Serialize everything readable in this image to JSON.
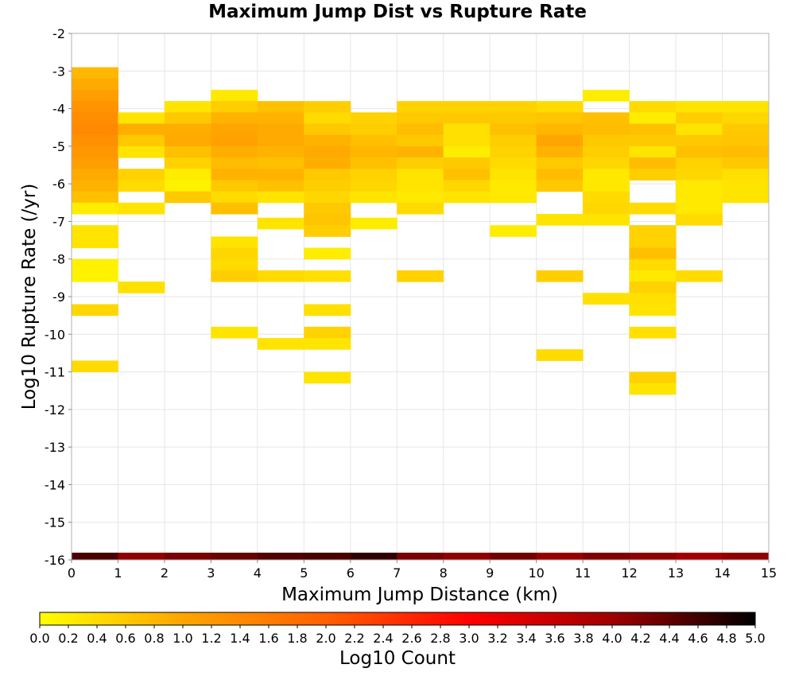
{
  "chart_data": {
    "type": "heatmap",
    "title": "Maximum Jump Dist vs Rupture Rate",
    "xlabel": "Maximum Jump Distance (km)",
    "ylabel": "Log10 Rupture Rate (/yr)",
    "xlim": [
      0,
      15
    ],
    "ylim": [
      -16,
      -2
    ],
    "x_ticks": [
      "0",
      "1",
      "2",
      "3",
      "4",
      "5",
      "6",
      "7",
      "8",
      "9",
      "10",
      "11",
      "12",
      "13",
      "14",
      "15"
    ],
    "y_ticks": [
      "-2",
      "-3",
      "-4",
      "-5",
      "-6",
      "-7",
      "-8",
      "-9",
      "-10",
      "-11",
      "-12",
      "-13",
      "-14",
      "-15",
      "-16"
    ],
    "colorbar": {
      "label": "Log10 Count",
      "range": [
        0,
        5
      ],
      "ticks": [
        "0.0",
        "0.2",
        "0.4",
        "0.6",
        "0.8",
        "1.0",
        "1.2",
        "1.4",
        "1.6",
        "1.8",
        "2.0",
        "2.2",
        "2.4",
        "2.6",
        "2.8",
        "3.0",
        "3.2",
        "3.4",
        "3.6",
        "3.8",
        "4.0",
        "4.2",
        "4.4",
        "4.6",
        "4.8",
        "5.0"
      ],
      "colors": [
        "#ffff00",
        "#ffa500",
        "#ff6000",
        "#ff0000",
        "#a00000",
        "#000000"
      ]
    },
    "grid": true,
    "bin_width_x": 1,
    "bin_height_y": 0.3,
    "cells": [
      {
        "x": 0.5,
        "y": -3.05,
        "v": 0.8
      },
      {
        "x": 0.5,
        "y": -3.35,
        "v": 0.95
      },
      {
        "x": 0.5,
        "y": -3.65,
        "v": 1.1
      },
      {
        "x": 0.5,
        "y": -3.95,
        "v": 1.25
      },
      {
        "x": 0.5,
        "y": -4.25,
        "v": 1.35
      },
      {
        "x": 0.5,
        "y": -4.55,
        "v": 1.4
      },
      {
        "x": 0.5,
        "y": -4.85,
        "v": 1.3
      },
      {
        "x": 0.5,
        "y": -5.15,
        "v": 1.2
      },
      {
        "x": 0.5,
        "y": -5.45,
        "v": 1.1
      },
      {
        "x": 0.5,
        "y": -5.75,
        "v": 0.95
      },
      {
        "x": 0.5,
        "y": -6.05,
        "v": 0.85
      },
      {
        "x": 0.5,
        "y": -6.35,
        "v": 0.7
      },
      {
        "x": 0.5,
        "y": -6.65,
        "v": 0.2
      },
      {
        "x": 0.5,
        "y": -7.25,
        "v": 0.3
      },
      {
        "x": 0.5,
        "y": -7.55,
        "v": 0.3
      },
      {
        "x": 0.5,
        "y": -8.15,
        "v": 0.15
      },
      {
        "x": 0.5,
        "y": -8.45,
        "v": 0.15
      },
      {
        "x": 0.5,
        "y": -9.35,
        "v": 0.45
      },
      {
        "x": 0.5,
        "y": -10.85,
        "v": 0.4
      },
      {
        "x": 1.5,
        "y": -4.25,
        "v": 0.3
      },
      {
        "x": 1.5,
        "y": -4.55,
        "v": 0.9
      },
      {
        "x": 1.5,
        "y": -4.85,
        "v": 0.6
      },
      {
        "x": 1.5,
        "y": -5.15,
        "v": 0.3
      },
      {
        "x": 1.5,
        "y": -5.75,
        "v": 0.5
      },
      {
        "x": 1.5,
        "y": -6.05,
        "v": 0.4
      },
      {
        "x": 1.5,
        "y": -6.65,
        "v": 0.3
      },
      {
        "x": 1.5,
        "y": -8.75,
        "v": 0.35
      },
      {
        "x": 2.5,
        "y": -3.95,
        "v": 0.3
      },
      {
        "x": 2.5,
        "y": -4.25,
        "v": 0.6
      },
      {
        "x": 2.5,
        "y": -4.55,
        "v": 0.9
      },
      {
        "x": 2.5,
        "y": -4.85,
        "v": 0.95
      },
      {
        "x": 2.5,
        "y": -5.15,
        "v": 0.7
      },
      {
        "x": 2.5,
        "y": -5.45,
        "v": 0.5
      },
      {
        "x": 2.5,
        "y": -5.75,
        "v": 0.2
      },
      {
        "x": 2.5,
        "y": -6.05,
        "v": 0.15
      },
      {
        "x": 2.5,
        "y": -6.35,
        "v": 0.6
      },
      {
        "x": 3.5,
        "y": -3.65,
        "v": 0.25
      },
      {
        "x": 3.5,
        "y": -3.95,
        "v": 0.55
      },
      {
        "x": 3.5,
        "y": -4.25,
        "v": 0.85
      },
      {
        "x": 3.5,
        "y": -4.55,
        "v": 1.0
      },
      {
        "x": 3.5,
        "y": -4.85,
        "v": 1.05
      },
      {
        "x": 3.5,
        "y": -5.15,
        "v": 0.9
      },
      {
        "x": 3.5,
        "y": -5.45,
        "v": 0.75
      },
      {
        "x": 3.5,
        "y": -5.75,
        "v": 0.85
      },
      {
        "x": 3.5,
        "y": -6.05,
        "v": 0.6
      },
      {
        "x": 3.5,
        "y": -6.35,
        "v": 0.4
      },
      {
        "x": 3.5,
        "y": -6.65,
        "v": 0.7
      },
      {
        "x": 3.5,
        "y": -7.55,
        "v": 0.3
      },
      {
        "x": 3.5,
        "y": -7.85,
        "v": 0.45
      },
      {
        "x": 3.5,
        "y": -8.15,
        "v": 0.4
      },
      {
        "x": 3.5,
        "y": -8.45,
        "v": 0.55
      },
      {
        "x": 3.5,
        "y": -9.95,
        "v": 0.3
      },
      {
        "x": 4.5,
        "y": -3.95,
        "v": 0.7
      },
      {
        "x": 4.5,
        "y": -4.25,
        "v": 0.85
      },
      {
        "x": 4.5,
        "y": -4.55,
        "v": 0.95
      },
      {
        "x": 4.5,
        "y": -4.85,
        "v": 0.95
      },
      {
        "x": 4.5,
        "y": -5.15,
        "v": 0.85
      },
      {
        "x": 4.5,
        "y": -5.45,
        "v": 0.7
      },
      {
        "x": 4.5,
        "y": -5.75,
        "v": 0.85
      },
      {
        "x": 4.5,
        "y": -6.05,
        "v": 0.7
      },
      {
        "x": 4.5,
        "y": -6.35,
        "v": 0.3
      },
      {
        "x": 4.5,
        "y": -7.05,
        "v": 0.3
      },
      {
        "x": 4.5,
        "y": -8.45,
        "v": 0.4
      },
      {
        "x": 4.5,
        "y": -10.25,
        "v": 0.3
      },
      {
        "x": 5.5,
        "y": -3.95,
        "v": 0.55
      },
      {
        "x": 5.5,
        "y": -4.25,
        "v": 0.4
      },
      {
        "x": 5.5,
        "y": -4.55,
        "v": 0.6
      },
      {
        "x": 5.5,
        "y": -4.85,
        "v": 0.85
      },
      {
        "x": 5.5,
        "y": -5.15,
        "v": 0.95
      },
      {
        "x": 5.5,
        "y": -5.45,
        "v": 0.9
      },
      {
        "x": 5.5,
        "y": -5.75,
        "v": 0.6
      },
      {
        "x": 5.5,
        "y": -6.05,
        "v": 0.55
      },
      {
        "x": 5.5,
        "y": -6.35,
        "v": 0.45
      },
      {
        "x": 5.5,
        "y": -6.65,
        "v": 0.6
      },
      {
        "x": 5.5,
        "y": -6.95,
        "v": 0.65
      },
      {
        "x": 5.5,
        "y": -7.25,
        "v": 0.55
      },
      {
        "x": 5.5,
        "y": -7.85,
        "v": 0.2
      },
      {
        "x": 5.5,
        "y": -8.45,
        "v": 0.35
      },
      {
        "x": 5.5,
        "y": -9.35,
        "v": 0.35
      },
      {
        "x": 5.5,
        "y": -9.95,
        "v": 0.5
      },
      {
        "x": 5.5,
        "y": -10.25,
        "v": 0.3
      },
      {
        "x": 5.5,
        "y": -11.15,
        "v": 0.3
      },
      {
        "x": 6.5,
        "y": -4.25,
        "v": 0.5
      },
      {
        "x": 6.5,
        "y": -4.55,
        "v": 0.55
      },
      {
        "x": 6.5,
        "y": -4.85,
        "v": 0.7
      },
      {
        "x": 6.5,
        "y": -5.15,
        "v": 0.8
      },
      {
        "x": 6.5,
        "y": -5.45,
        "v": 0.7
      },
      {
        "x": 6.5,
        "y": -5.75,
        "v": 0.5
      },
      {
        "x": 6.5,
        "y": -6.05,
        "v": 0.45
      },
      {
        "x": 6.5,
        "y": -6.35,
        "v": 0.3
      },
      {
        "x": 6.5,
        "y": -7.05,
        "v": 0.2
      },
      {
        "x": 7.5,
        "y": -3.95,
        "v": 0.5
      },
      {
        "x": 7.5,
        "y": -4.25,
        "v": 0.6
      },
      {
        "x": 7.5,
        "y": -4.55,
        "v": 0.75
      },
      {
        "x": 7.5,
        "y": -4.85,
        "v": 0.6
      },
      {
        "x": 7.5,
        "y": -5.15,
        "v": 0.85
      },
      {
        "x": 7.5,
        "y": -5.45,
        "v": 0.55
      },
      {
        "x": 7.5,
        "y": -5.75,
        "v": 0.3
      },
      {
        "x": 7.5,
        "y": -6.05,
        "v": 0.3
      },
      {
        "x": 7.5,
        "y": -6.35,
        "v": 0.25
      },
      {
        "x": 7.5,
        "y": -6.65,
        "v": 0.4
      },
      {
        "x": 7.5,
        "y": -8.45,
        "v": 0.5
      },
      {
        "x": 8.5,
        "y": -3.95,
        "v": 0.5
      },
      {
        "x": 8.5,
        "y": -4.25,
        "v": 0.6
      },
      {
        "x": 8.5,
        "y": -4.55,
        "v": 0.35
      },
      {
        "x": 8.5,
        "y": -4.85,
        "v": 0.35
      },
      {
        "x": 8.5,
        "y": -5.15,
        "v": 0.2
      },
      {
        "x": 8.5,
        "y": -5.45,
        "v": 0.6
      },
      {
        "x": 8.5,
        "y": -5.75,
        "v": 0.7
      },
      {
        "x": 8.5,
        "y": -6.05,
        "v": 0.45
      },
      {
        "x": 8.5,
        "y": -6.35,
        "v": 0.3
      },
      {
        "x": 9.5,
        "y": -3.95,
        "v": 0.5
      },
      {
        "x": 9.5,
        "y": -4.25,
        "v": 0.6
      },
      {
        "x": 9.5,
        "y": -4.55,
        "v": 0.7
      },
      {
        "x": 9.5,
        "y": -4.85,
        "v": 0.55
      },
      {
        "x": 9.5,
        "y": -5.15,
        "v": 0.5
      },
      {
        "x": 9.5,
        "y": -5.45,
        "v": 0.4
      },
      {
        "x": 9.5,
        "y": -5.75,
        "v": 0.3
      },
      {
        "x": 9.5,
        "y": -6.05,
        "v": 0.25
      },
      {
        "x": 9.5,
        "y": -6.35,
        "v": 0.25
      },
      {
        "x": 9.5,
        "y": -7.25,
        "v": 0.2
      },
      {
        "x": 10.5,
        "y": -3.95,
        "v": 0.4
      },
      {
        "x": 10.5,
        "y": -4.25,
        "v": 0.65
      },
      {
        "x": 10.5,
        "y": -4.55,
        "v": 0.8
      },
      {
        "x": 10.5,
        "y": -4.85,
        "v": 1.0
      },
      {
        "x": 10.5,
        "y": -5.15,
        "v": 0.85
      },
      {
        "x": 10.5,
        "y": -5.45,
        "v": 0.6
      },
      {
        "x": 10.5,
        "y": -5.75,
        "v": 0.75
      },
      {
        "x": 10.5,
        "y": -6.05,
        "v": 0.6
      },
      {
        "x": 10.5,
        "y": -6.95,
        "v": 0.3
      },
      {
        "x": 10.5,
        "y": -8.45,
        "v": 0.55
      },
      {
        "x": 10.5,
        "y": -10.55,
        "v": 0.4
      },
      {
        "x": 11.5,
        "y": -3.65,
        "v": 0.2
      },
      {
        "x": 11.5,
        "y": -4.25,
        "v": 0.7
      },
      {
        "x": 11.5,
        "y": -4.55,
        "v": 0.75
      },
      {
        "x": 11.5,
        "y": -4.85,
        "v": 0.6
      },
      {
        "x": 11.5,
        "y": -5.15,
        "v": 0.55
      },
      {
        "x": 11.5,
        "y": -5.45,
        "v": 0.45
      },
      {
        "x": 11.5,
        "y": -5.75,
        "v": 0.25
      },
      {
        "x": 11.5,
        "y": -6.05,
        "v": 0.25
      },
      {
        "x": 11.5,
        "y": -6.35,
        "v": 0.4
      },
      {
        "x": 11.5,
        "y": -6.65,
        "v": 0.45
      },
      {
        "x": 11.5,
        "y": -6.95,
        "v": 0.3
      },
      {
        "x": 11.5,
        "y": -9.05,
        "v": 0.35
      },
      {
        "x": 12.5,
        "y": -3.95,
        "v": 0.4
      },
      {
        "x": 12.5,
        "y": -4.25,
        "v": 0.2
      },
      {
        "x": 12.5,
        "y": -4.55,
        "v": 0.7
      },
      {
        "x": 12.5,
        "y": -4.85,
        "v": 0.6
      },
      {
        "x": 12.5,
        "y": -5.15,
        "v": 0.3
      },
      {
        "x": 12.5,
        "y": -5.45,
        "v": 0.75
      },
      {
        "x": 12.5,
        "y": -5.75,
        "v": 0.55
      },
      {
        "x": 12.5,
        "y": -6.65,
        "v": 0.4
      },
      {
        "x": 12.5,
        "y": -7.25,
        "v": 0.5
      },
      {
        "x": 12.5,
        "y": -7.55,
        "v": 0.5
      },
      {
        "x": 12.5,
        "y": -7.85,
        "v": 0.7
      },
      {
        "x": 12.5,
        "y": -8.15,
        "v": 0.4
      },
      {
        "x": 12.5,
        "y": -8.45,
        "v": 0.25
      },
      {
        "x": 12.5,
        "y": -8.75,
        "v": 0.5
      },
      {
        "x": 12.5,
        "y": -9.05,
        "v": 0.35
      },
      {
        "x": 12.5,
        "y": -9.35,
        "v": 0.3
      },
      {
        "x": 12.5,
        "y": -9.95,
        "v": 0.35
      },
      {
        "x": 12.5,
        "y": -11.15,
        "v": 0.5
      },
      {
        "x": 12.5,
        "y": -11.45,
        "v": 0.3
      },
      {
        "x": 13.5,
        "y": -3.95,
        "v": 0.3
      },
      {
        "x": 13.5,
        "y": -4.25,
        "v": 0.55
      },
      {
        "x": 13.5,
        "y": -4.55,
        "v": 0.3
      },
      {
        "x": 13.5,
        "y": -4.85,
        "v": 0.6
      },
      {
        "x": 13.5,
        "y": -5.15,
        "v": 0.7
      },
      {
        "x": 13.5,
        "y": -5.45,
        "v": 0.5
      },
      {
        "x": 13.5,
        "y": -5.75,
        "v": 0.45
      },
      {
        "x": 13.5,
        "y": -6.05,
        "v": 0.25
      },
      {
        "x": 13.5,
        "y": -6.35,
        "v": 0.25
      },
      {
        "x": 13.5,
        "y": -6.65,
        "v": 0.25
      },
      {
        "x": 13.5,
        "y": -6.95,
        "v": 0.4
      },
      {
        "x": 13.5,
        "y": -8.45,
        "v": 0.4
      },
      {
        "x": 14.5,
        "y": -3.95,
        "v": 0.3
      },
      {
        "x": 14.5,
        "y": -4.25,
        "v": 0.45
      },
      {
        "x": 14.5,
        "y": -4.55,
        "v": 0.6
      },
      {
        "x": 14.5,
        "y": -4.85,
        "v": 0.65
      },
      {
        "x": 14.5,
        "y": -5.15,
        "v": 0.75
      },
      {
        "x": 14.5,
        "y": -5.45,
        "v": 0.6
      },
      {
        "x": 14.5,
        "y": -5.75,
        "v": 0.35
      },
      {
        "x": 14.5,
        "y": -6.05,
        "v": 0.3
      },
      {
        "x": 14.5,
        "y": -6.35,
        "v": 0.3
      }
    ],
    "bottom_row": {
      "y": -16,
      "values": [
        4.55,
        4.1,
        4.25,
        4.35,
        4.5,
        4.55,
        4.7,
        4.25,
        4.1,
        4.3,
        4.05,
        4.2,
        4.1,
        4.0,
        4.1
      ]
    }
  }
}
